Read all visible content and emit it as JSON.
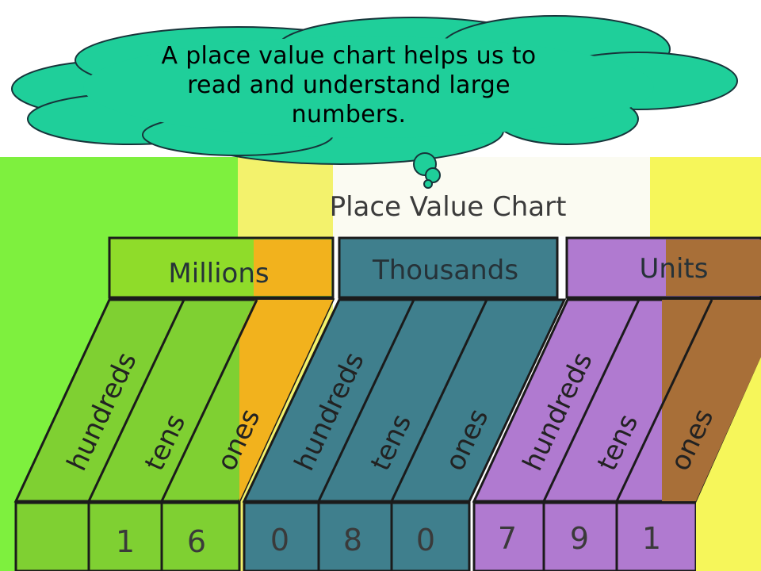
{
  "speech_bubble": {
    "lines": [
      "A place value chart helps us to",
      "read and understand large",
      "numbers."
    ]
  },
  "chart": {
    "title": "Place Value Chart",
    "periods": [
      {
        "name": "Millions",
        "color": "#8fdc2a",
        "columns": [
          {
            "label": "hundreds",
            "digit": ""
          },
          {
            "label": "tens",
            "digit": "1"
          },
          {
            "label": "ones",
            "digit": "6"
          }
        ]
      },
      {
        "name": "Thousands",
        "color": "#3f7f8d",
        "columns": [
          {
            "label": "hundreds",
            "digit": "0"
          },
          {
            "label": "tens",
            "digit": "8"
          },
          {
            "label": "ones",
            "digit": "0"
          }
        ]
      },
      {
        "name": "Units",
        "color": "#b07ad0",
        "columns": [
          {
            "label": "hundreds",
            "digit": "7"
          },
          {
            "label": "tens",
            "digit": "9"
          },
          {
            "label": "ones",
            "digit": "1"
          }
        ]
      }
    ]
  },
  "colors": {
    "bubble_fill": "#1fcf9a",
    "left_green": "#7ef03e",
    "right_yellow": "#f6f65a",
    "orange_band": "#f2b21d",
    "brown_band": "#a86f38"
  }
}
